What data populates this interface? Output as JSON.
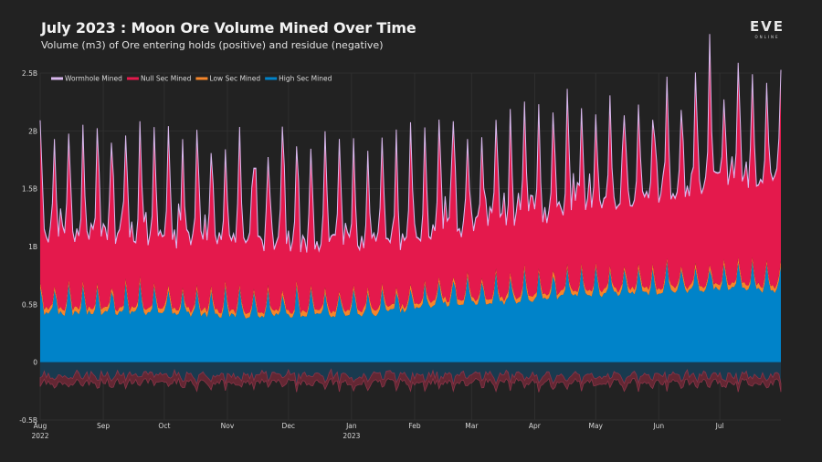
{
  "header": {
    "title": "July 2023 : Moon Ore Volume Mined Over Time",
    "subtitle": "Volume (m3) of Ore entering holds (positive) and residue (negative)",
    "logo_main": "EVE",
    "logo_sub": "ONLINE"
  },
  "chart_data": {
    "type": "area",
    "stacked": true,
    "title": "July 2023 : Moon Ore Volume Mined Over Time",
    "subtitle": "Volume (m3) of Ore entering holds (positive) and residue (negative)",
    "xlabel": "",
    "ylabel": "",
    "x_start": "2022-08-01",
    "x_end": "2023-07-31",
    "x_step": "day",
    "ylim": [
      -0.5,
      2.5
    ],
    "y_unit": "B m3",
    "y_ticks": [
      {
        "value": 2.5,
        "label": "2.5B"
      },
      {
        "value": 2.0,
        "label": "2B"
      },
      {
        "value": 1.5,
        "label": "1.5B"
      },
      {
        "value": 1.0,
        "label": "1B"
      },
      {
        "value": 0.5,
        "label": "0.5B"
      },
      {
        "value": 0.0,
        "label": "0"
      },
      {
        "value": -0.5,
        "label": "-0.5B"
      }
    ],
    "x_ticks": [
      {
        "date": "2022-08-01",
        "label": "Aug",
        "sublabel": "2022"
      },
      {
        "date": "2022-09-01",
        "label": "Sep",
        "sublabel": ""
      },
      {
        "date": "2022-10-01",
        "label": "Oct",
        "sublabel": ""
      },
      {
        "date": "2022-11-01",
        "label": "Nov",
        "sublabel": ""
      },
      {
        "date": "2022-12-01",
        "label": "Dec",
        "sublabel": ""
      },
      {
        "date": "2023-01-01",
        "label": "Jan",
        "sublabel": "2023"
      },
      {
        "date": "2023-02-01",
        "label": "Feb",
        "sublabel": ""
      },
      {
        "date": "2023-03-01",
        "label": "Mar",
        "sublabel": ""
      },
      {
        "date": "2023-04-01",
        "label": "Apr",
        "sublabel": ""
      },
      {
        "date": "2023-05-01",
        "label": "May",
        "sublabel": ""
      },
      {
        "date": "2023-06-01",
        "label": "Jun",
        "sublabel": ""
      },
      {
        "date": "2023-07-01",
        "label": "Jul",
        "sublabel": ""
      }
    ],
    "grid": true,
    "legend_position": "top-left",
    "series": [
      {
        "name": "High Sec Mined",
        "color": "#0083c9",
        "stack_order": 1,
        "monthly_baseline": [
          0.42,
          0.43,
          0.42,
          0.4,
          0.4,
          0.42,
          0.5,
          0.52,
          0.58,
          0.6,
          0.63,
          0.62
        ],
        "spike_peak": 0.64,
        "spike_period_days": 7
      },
      {
        "name": "Low Sec Mined",
        "color": "#f5862a",
        "stack_order": 2,
        "typical_value": 0.03
      },
      {
        "name": "Null Sec Mined",
        "color": "#e4194c",
        "stack_order": 3,
        "monthly_baseline": [
          0.64,
          0.65,
          0.62,
          0.62,
          0.6,
          0.58,
          0.62,
          0.68,
          0.72,
          0.78,
          0.9,
          0.92
        ],
        "spike_peak": 0.85,
        "spike_period_days": 7
      },
      {
        "name": "Wormhole Mined",
        "color": "#d9b8ee",
        "stack_order": 4,
        "typical_value": 0.005
      },
      {
        "name": "Residue",
        "color": "#7a2a3a",
        "negative": true,
        "typical_range": [
          -0.12,
          -0.3
        ]
      }
    ],
    "notable_peaks": [
      {
        "date": "2022-11-06",
        "total": 2.08
      },
      {
        "date": "2022-12-10",
        "total": 2.1
      },
      {
        "date": "2023-06-18",
        "total": 2.38
      },
      {
        "date": "2023-07-28",
        "total": 2.35
      }
    ]
  }
}
